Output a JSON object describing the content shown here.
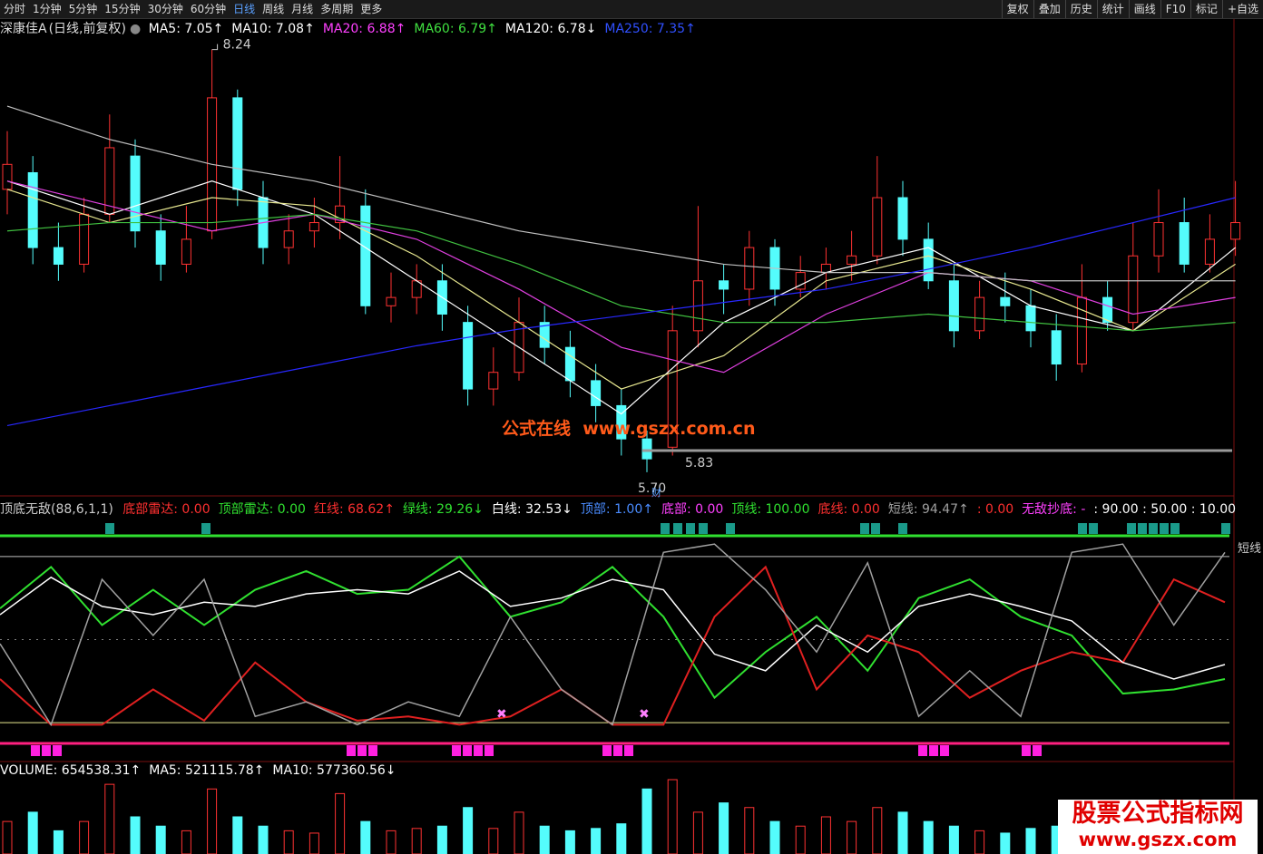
{
  "toolbar": {
    "tabs": [
      "分时",
      "1分钟",
      "5分钟",
      "15分钟",
      "30分钟",
      "60分钟",
      "日线",
      "周线",
      "月线",
      "多周期",
      "更多"
    ],
    "tools": [
      "复权",
      "叠加",
      "历史",
      "统计",
      "画线",
      "F10",
      "标记",
      "+自选"
    ]
  },
  "main": {
    "title": "深康佳A",
    "subtitle": "(日线,前复权)",
    "legend": [
      {
        "text": "MA5: 7.05↑",
        "color": "#ffffff"
      },
      {
        "text": "MA10: 7.08↑",
        "color": "#ffffff"
      },
      {
        "text": "MA20: 6.88↑",
        "color": "#ff40ff"
      },
      {
        "text": "MA60: 6.79↑",
        "color": "#40e040"
      },
      {
        "text": "MA120: 6.78↓",
        "color": "#ffffff"
      },
      {
        "text": "MA250: 7.35↑",
        "color": "#3050ff"
      }
    ]
  },
  "indicator": {
    "title": "顶底无敌(88,6,1,1)",
    "legend": [
      {
        "text": "底部雷达: 0.00",
        "color": "#ff3030"
      },
      {
        "text": "顶部雷达: 0.00",
        "color": "#30e030"
      },
      {
        "text": "红线: 68.62↑",
        "color": "#ff3030"
      },
      {
        "text": "绿线: 29.26↓",
        "color": "#30e030"
      },
      {
        "text": "白线: 32.53↓",
        "color": "#ffffff"
      },
      {
        "text": "顶部: 1.00↑",
        "color": "#4a8cff"
      },
      {
        "text": "底部: 0.00",
        "color": "#ff40ff"
      },
      {
        "text": "顶线: 100.00",
        "color": "#30e030"
      },
      {
        "text": "底线: 0.00",
        "color": "#ff3030"
      },
      {
        "text": "短线: 94.47↑",
        "color": "#a0a0a0"
      },
      {
        "text": ": 0.00",
        "color": "#ff3030"
      },
      {
        "text": "无敌抄底: -",
        "color": "#ff40ff"
      },
      {
        "text": ": 90.00 : 50.00 : 10.00",
        "color": "#ffffff"
      }
    ],
    "side_label": "短线"
  },
  "volume": {
    "legend": [
      {
        "text": "VOLUME: 654538.31↑",
        "color": "#ffffff"
      },
      {
        "text": "MA5: 521115.78↑",
        "color": "#ffffff"
      },
      {
        "text": "MA10: 577360.56↓",
        "color": "#ffffff"
      }
    ]
  },
  "chart_data": [
    {
      "type": "candlestick",
      "ylim": [
        5.65,
        8.32
      ],
      "up_color": "#ff3232",
      "down_color": "#54fcfc",
      "open": [
        7.4,
        7.5,
        7.05,
        6.95,
        7.25,
        7.6,
        7.15,
        6.95,
        7.15,
        7.95,
        7.35,
        7.05,
        7.15,
        7.2,
        7.3,
        6.7,
        6.75,
        6.85,
        6.6,
        6.2,
        6.3,
        6.6,
        6.45,
        6.25,
        6.1,
        5.9,
        5.85,
        6.55,
        6.85,
        6.8,
        7.05,
        6.8,
        6.9,
        6.95,
        7.0,
        7.35,
        7.1,
        6.85,
        6.55,
        6.75,
        6.7,
        6.55,
        6.35,
        6.75,
        6.6,
        7.0,
        7.2,
        6.95,
        7.1
      ],
      "high": [
        7.75,
        7.6,
        7.2,
        7.35,
        7.85,
        7.7,
        7.25,
        7.3,
        8.24,
        8.0,
        7.45,
        7.25,
        7.35,
        7.6,
        7.4,
        6.9,
        6.95,
        6.95,
        6.7,
        6.45,
        6.75,
        6.7,
        6.55,
        6.35,
        6.2,
        5.95,
        6.7,
        7.3,
        6.95,
        7.15,
        7.1,
        7.0,
        7.05,
        7.15,
        7.6,
        7.45,
        7.2,
        6.95,
        6.85,
        6.9,
        6.8,
        6.65,
        6.95,
        6.85,
        7.2,
        7.4,
        7.35,
        7.25,
        7.45
      ],
      "low": [
        7.25,
        6.95,
        6.85,
        6.9,
        7.2,
        7.05,
        6.85,
        6.9,
        7.1,
        7.3,
        6.95,
        6.95,
        7.05,
        7.1,
        6.65,
        6.6,
        6.65,
        6.55,
        6.1,
        6.1,
        6.25,
        6.35,
        6.15,
        6.0,
        5.8,
        5.7,
        5.8,
        6.45,
        6.65,
        6.7,
        6.7,
        6.75,
        6.8,
        6.85,
        6.95,
        7.0,
        6.8,
        6.45,
        6.5,
        6.6,
        6.45,
        6.25,
        6.3,
        6.55,
        6.55,
        6.9,
        6.9,
        6.9,
        7.0
      ],
      "close": [
        7.55,
        7.05,
        6.95,
        7.25,
        7.65,
        7.15,
        6.95,
        7.1,
        7.95,
        7.4,
        7.05,
        7.15,
        7.2,
        7.3,
        6.7,
        6.75,
        6.85,
        6.65,
        6.2,
        6.3,
        6.6,
        6.45,
        6.25,
        6.1,
        5.9,
        5.78,
        6.55,
        6.85,
        6.8,
        7.05,
        6.8,
        6.9,
        6.95,
        7.0,
        7.35,
        7.1,
        6.85,
        6.55,
        6.75,
        6.7,
        6.55,
        6.35,
        6.75,
        6.6,
        7.0,
        7.2,
        6.95,
        7.1,
        7.2
      ],
      "series": [
        {
          "color": "#ffffff",
          "values": [
            7.45,
            7.25,
            7.45,
            7.25,
            6.85,
            6.45,
            6.05,
            6.6,
            6.9,
            7.05,
            6.7,
            6.55,
            7.05
          ]
        },
        {
          "color": "#e8e890",
          "values": [
            7.4,
            7.2,
            7.35,
            7.3,
            7.0,
            6.6,
            6.2,
            6.4,
            6.85,
            7.0,
            6.8,
            6.55,
            6.95
          ]
        },
        {
          "color": "#e040e0",
          "values": [
            7.45,
            7.3,
            7.15,
            7.25,
            7.1,
            6.8,
            6.45,
            6.3,
            6.65,
            6.9,
            6.85,
            6.65,
            6.75
          ]
        },
        {
          "color": "#40c040",
          "values": [
            7.15,
            7.2,
            7.2,
            7.25,
            7.15,
            6.95,
            6.7,
            6.6,
            6.6,
            6.65,
            6.6,
            6.55,
            6.6
          ]
        },
        {
          "color": "#c0c0c0",
          "values": [
            7.9,
            7.7,
            7.55,
            7.45,
            7.3,
            7.15,
            7.05,
            6.95,
            6.9,
            6.9,
            6.85,
            6.85,
            6.85
          ]
        },
        {
          "color": "#2828ff",
          "values": [
            5.98,
            6.1,
            6.22,
            6.34,
            6.46,
            6.56,
            6.64,
            6.72,
            6.8,
            6.92,
            7.05,
            7.2,
            7.35
          ]
        }
      ],
      "high_label": "8.24",
      "low_label": "5.70",
      "line_value": 5.83,
      "line_label": "5.83",
      "marker": "财"
    },
    {
      "type": "line",
      "ylim": [
        0,
        100
      ],
      "levels": [
        100,
        90,
        50,
        10,
        0
      ],
      "level_colors": [
        "#30e030",
        "#c0c0c0",
        "#808080",
        "#e8e890",
        "#ff2080"
      ],
      "series": [
        {
          "color": "#30e030",
          "values": [
            65,
            85,
            57,
            74,
            57,
            74,
            83,
            72,
            74,
            90,
            61,
            68,
            85,
            61,
            22,
            44,
            61,
            35,
            70,
            79,
            61,
            52,
            24,
            26,
            31
          ]
        },
        {
          "color": "#e02020",
          "values": [
            31,
            9,
            9,
            26,
            11,
            39,
            20,
            11,
            13,
            9,
            13,
            26,
            9,
            9,
            61,
            85,
            26,
            52,
            44,
            22,
            35,
            44,
            39,
            79,
            68
          ]
        },
        {
          "color": "#ffffff",
          "values": [
            62,
            80,
            66,
            62,
            68,
            66,
            72,
            74,
            72,
            83,
            66,
            70,
            79,
            74,
            43,
            35,
            57,
            44,
            66,
            72,
            66,
            59,
            39,
            31,
            38
          ]
        },
        {
          "color": "#a0a0a0",
          "values": [
            48,
            9,
            79,
            52,
            79,
            13,
            20,
            9,
            20,
            13,
            61,
            26,
            9,
            92,
            96,
            74,
            44,
            87,
            13,
            35,
            13,
            92,
            96,
            57,
            92
          ]
        }
      ]
    },
    {
      "type": "bar",
      "ylim": [
        0,
        1600000
      ],
      "values": [
        700000,
        900000,
        500000,
        700000,
        1500000,
        800000,
        600000,
        500000,
        1400000,
        800000,
        600000,
        500000,
        450000,
        1300000,
        700000,
        500000,
        550000,
        600000,
        1000000,
        550000,
        900000,
        600000,
        500000,
        550000,
        650000,
        1400000,
        1600000,
        900000,
        1100000,
        1000000,
        700000,
        600000,
        800000,
        700000,
        1000000,
        900000,
        700000,
        600000,
        500000,
        450000,
        550000,
        600000,
        950000,
        600000,
        800000,
        700000,
        600000,
        550000,
        654538.31
      ]
    }
  ],
  "watermark": {
    "text1": "公式在线",
    "text2": "www.gszx.com.cn"
  },
  "badge": {
    "title": "股票公式指标网",
    "url": "www.gszx.com"
  }
}
